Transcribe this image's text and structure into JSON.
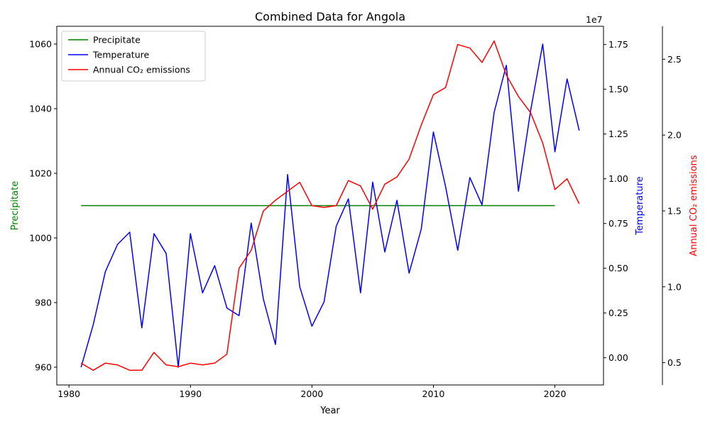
{
  "chart_data": {
    "type": "line",
    "title": "Combined Data for Angola",
    "xlabel": "Year",
    "x_ticks": [
      1980,
      1990,
      2000,
      2010,
      2020
    ],
    "xlim": [
      1979,
      2024
    ],
    "axes": [
      {
        "id": "left",
        "label": "Precipitate",
        "color": "#008000",
        "ylim": [
          954.5,
          1065.5
        ],
        "ticks": [
          960,
          980,
          1000,
          1020,
          1040,
          1060
        ],
        "tick_labels": [
          "960",
          "980",
          "1000",
          "1020",
          "1040",
          "1060"
        ]
      },
      {
        "id": "mid",
        "label": "Temperature",
        "color": "#0000ff",
        "ylim": [
          -0.152,
          1.852
        ],
        "ticks": [
          0,
          0.25,
          0.5,
          0.75,
          1.0,
          1.25,
          1.5,
          1.75
        ],
        "tick_labels": [
          "0.00",
          "0.25",
          "0.50",
          "0.75",
          "1.00",
          "1.25",
          "1.50",
          "1.75"
        ],
        "offset_text": "1e7"
      },
      {
        "id": "right",
        "label": "Annual CO₂ emissions",
        "color": "#ff0000",
        "ylim": [
          0.353,
          2.717
        ],
        "ticks": [
          0.5,
          1.0,
          1.5,
          2.0,
          2.5
        ],
        "tick_labels": [
          "0.5",
          "1.0",
          "1.5",
          "2.0",
          "2.5"
        ]
      }
    ],
    "legend": {
      "position": "upper left",
      "entries": [
        "Precipitate",
        "Temperature",
        "Annual CO₂ emissions"
      ]
    },
    "series": [
      {
        "name": "Precipitate",
        "axis": "left",
        "color": "#008000",
        "x": [
          1981,
          1982,
          1983,
          1984,
          1985,
          1986,
          1987,
          1988,
          1989,
          1990,
          1991,
          1992,
          1993,
          1994,
          1995,
          1996,
          1997,
          1998,
          1999,
          2000,
          2001,
          2002,
          2003,
          2004,
          2005,
          2006,
          2007,
          2008,
          2009,
          2010,
          2011,
          2012,
          2013,
          2014,
          2015,
          2016,
          2017,
          2018,
          2019,
          2020
        ],
        "y": [
          1010,
          1010,
          1010,
          1010,
          1010,
          1010,
          1010,
          1010,
          1010,
          1010,
          1010,
          1010,
          1010,
          1010,
          1010,
          1010,
          1010,
          1010,
          1010,
          1010,
          1010,
          1010,
          1010,
          1010,
          1010,
          1010,
          1010,
          1010,
          1010,
          1010,
          1010,
          1010,
          1010,
          1010,
          1010,
          1010,
          1010,
          1010,
          1010,
          1010
        ]
      },
      {
        "name": "Temperature",
        "axis": "right",
        "color": "#0000ff",
        "x": [
          1981,
          1982,
          1983,
          1984,
          1985,
          1986,
          1987,
          1988,
          1989,
          1990,
          1991,
          1992,
          1993,
          1994,
          1995,
          1996,
          1997,
          1998,
          1999,
          2000,
          2001,
          2002,
          2003,
          2004,
          2005,
          2006,
          2007,
          2008,
          2009,
          2010,
          2011,
          2012,
          2013,
          2014,
          2015,
          2016,
          2017,
          2018,
          2019,
          2020,
          2021,
          2022
        ],
        "y": [
          0.47,
          0.75,
          1.1,
          1.28,
          1.36,
          0.73,
          1.35,
          1.22,
          0.47,
          1.35,
          0.96,
          1.14,
          0.86,
          0.81,
          1.42,
          0.92,
          0.62,
          1.74,
          1.0,
          0.74,
          0.9,
          1.4,
          1.58,
          0.96,
          1.69,
          1.23,
          1.57,
          1.09,
          1.38,
          2.02,
          1.66,
          1.24,
          1.72,
          1.54,
          2.15,
          2.46,
          1.63,
          2.16,
          2.6,
          1.89,
          2.37,
          2.03
        ]
      },
      {
        "name": "Annual CO₂ emissions",
        "axis": "mid",
        "color": "#ff0000",
        "x": [
          1981,
          1982,
          1983,
          1984,
          1985,
          1986,
          1987,
          1988,
          1989,
          1990,
          1991,
          1992,
          1993,
          1994,
          1995,
          1996,
          1997,
          1998,
          1999,
          2000,
          2001,
          2002,
          2003,
          2004,
          2005,
          2006,
          2007,
          2008,
          2009,
          2010,
          2011,
          2012,
          2013,
          2014,
          2015,
          2016,
          2017,
          2018,
          2019,
          2020,
          2021,
          2022
        ],
        "y": [
          -0.03,
          -0.07,
          -0.03,
          -0.04,
          -0.07,
          -0.07,
          0.03,
          -0.04,
          -0.05,
          -0.03,
          -0.04,
          -0.03,
          0.02,
          0.5,
          0.6,
          0.82,
          0.88,
          0.93,
          0.98,
          0.85,
          0.84,
          0.85,
          0.99,
          0.96,
          0.83,
          0.97,
          1.01,
          1.11,
          1.3,
          1.47,
          1.51,
          1.75,
          1.73,
          1.65,
          1.77,
          1.58,
          1.46,
          1.37,
          1.2,
          0.94,
          1.0,
          0.86
        ]
      }
    ]
  }
}
